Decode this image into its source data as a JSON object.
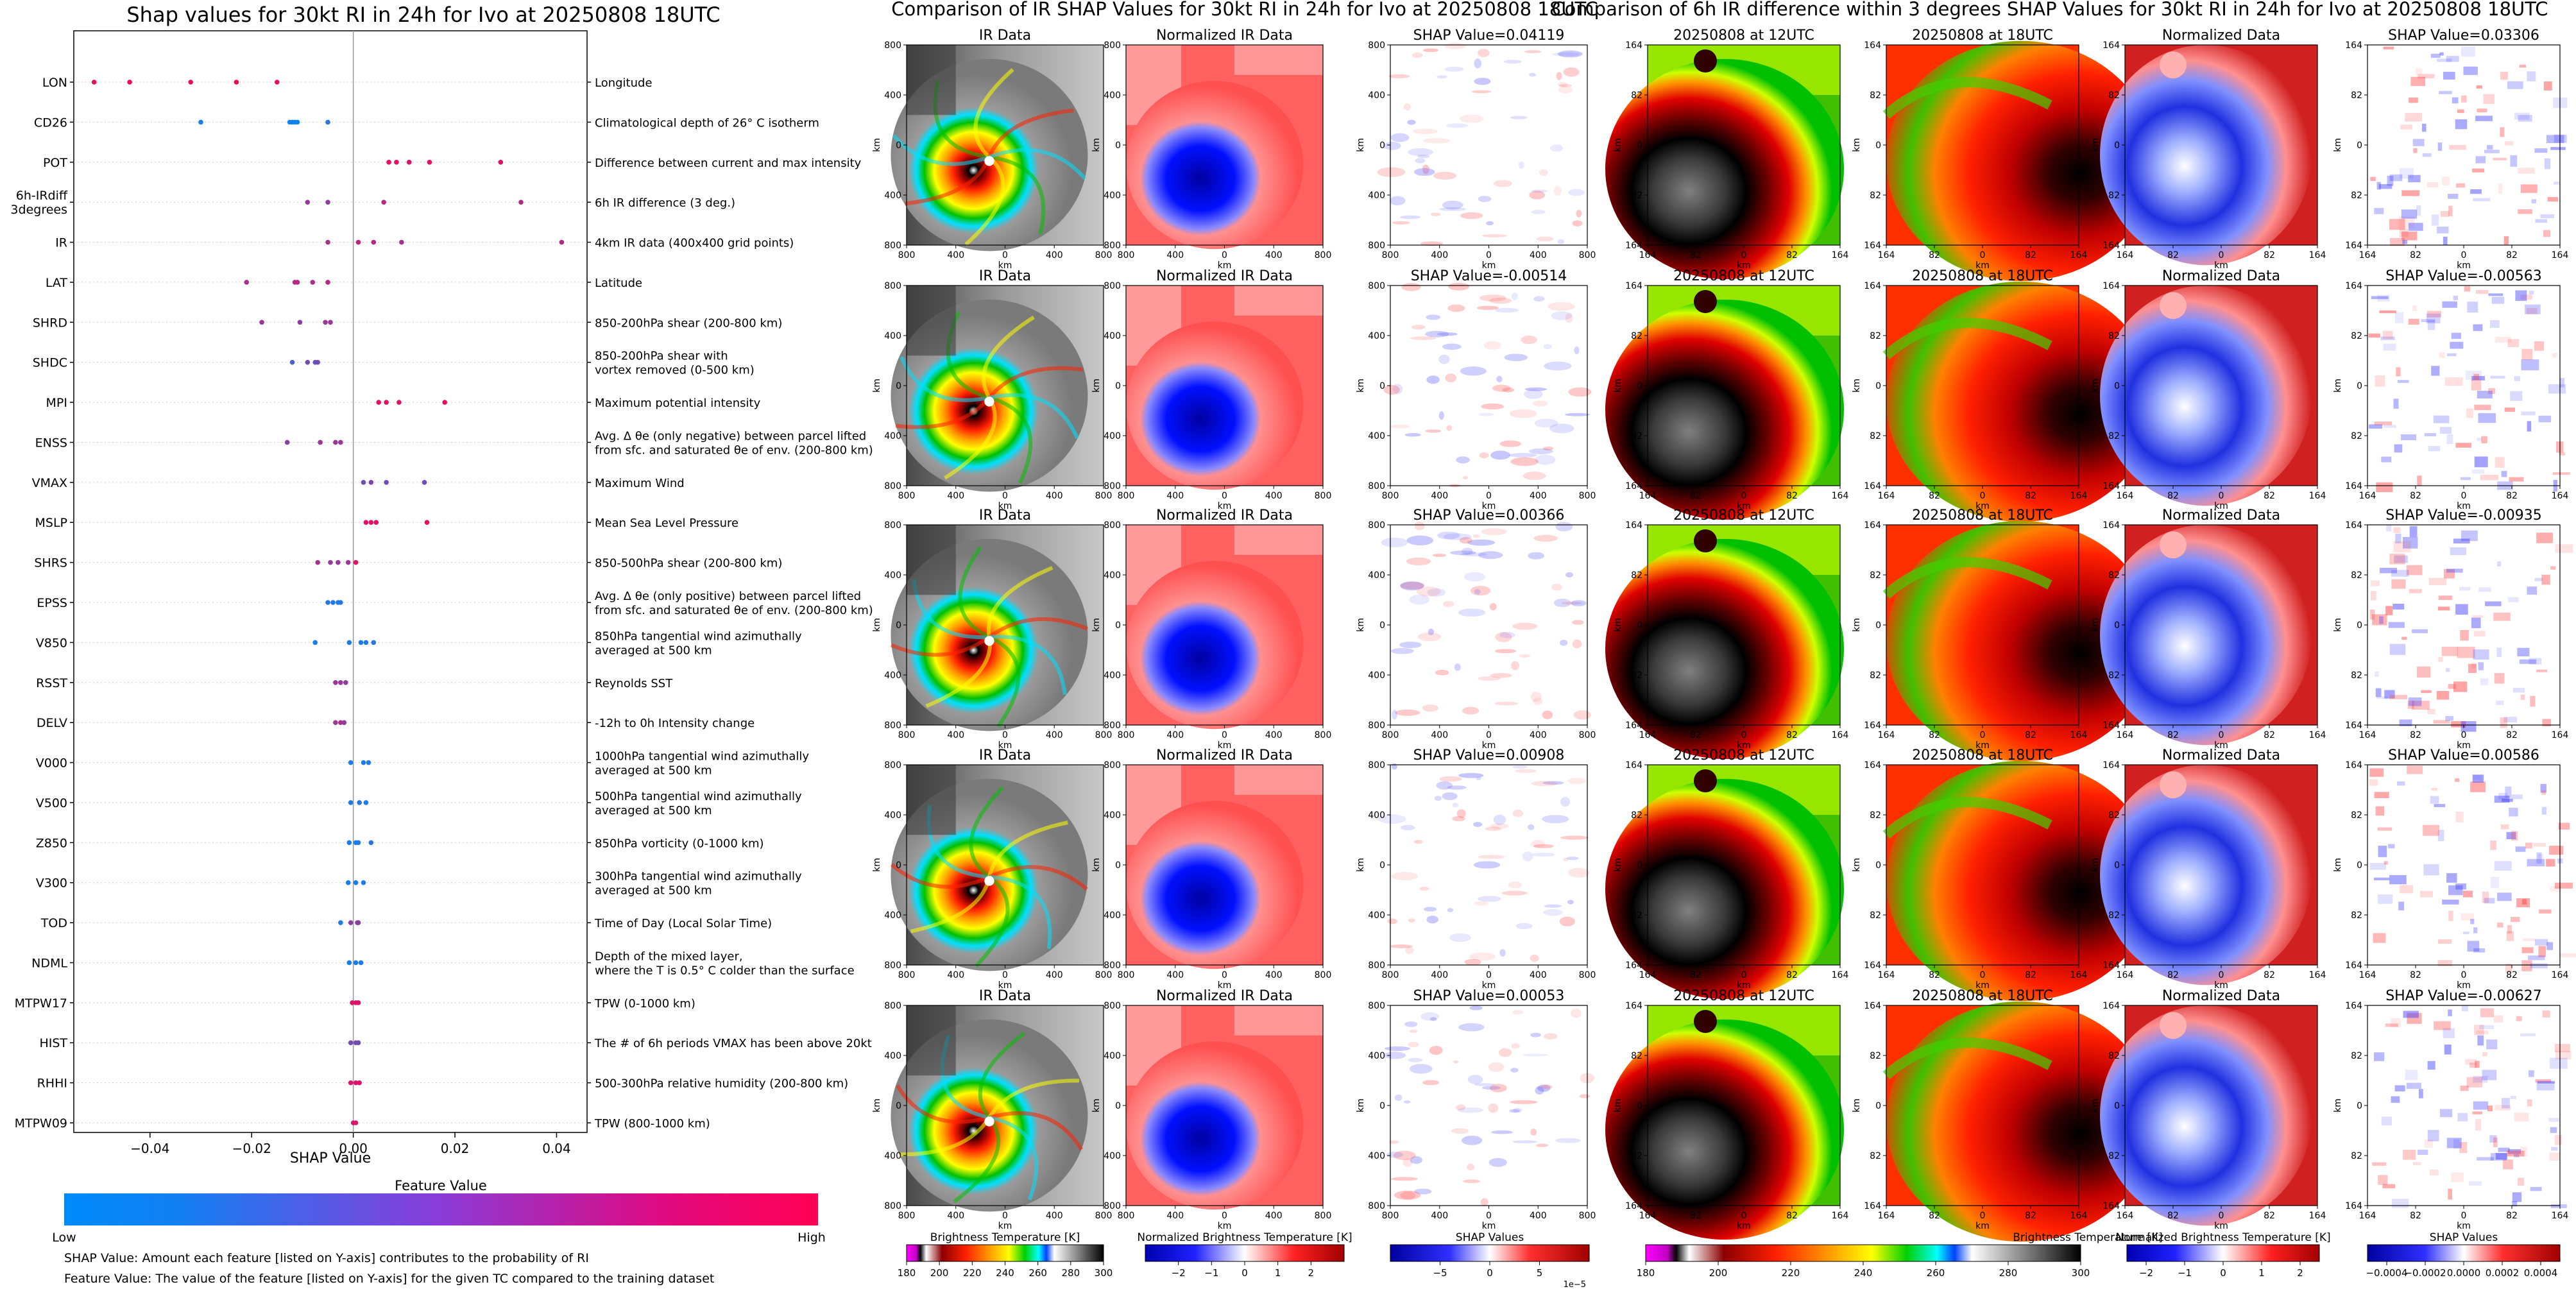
{
  "chart_data": [
    {
      "type": "scatter",
      "title": "Shap values for 30kt RI in 24h for Ivo at 20250808 18UTC",
      "xlabel": "SHAP Value",
      "xlim": [
        -0.055,
        0.046
      ],
      "xticks": [
        -0.04,
        -0.02,
        0.0,
        0.02,
        0.04
      ],
      "xtick_labels": [
        "−0.04",
        "−0.02",
        "0.00",
        "0.02",
        "0.04"
      ],
      "features": [
        {
          "name": "LON",
          "desc": [
            "Longitude"
          ],
          "points": [
            [
              -0.051,
              0.9
            ],
            [
              -0.044,
              0.95
            ],
            [
              -0.032,
              0.9
            ],
            [
              -0.023,
              0.95
            ],
            [
              -0.015,
              0.9
            ]
          ]
        },
        {
          "name": "CD26",
          "desc": [
            "Climatological depth of 26° C isotherm"
          ],
          "points": [
            [
              -0.03,
              0.1
            ],
            [
              -0.0125,
              0.05
            ],
            [
              -0.012,
              0.1
            ],
            [
              -0.0115,
              0.05
            ],
            [
              -0.011,
              0.05
            ],
            [
              -0.005,
              0.15
            ]
          ]
        },
        {
          "name": "POT",
          "desc": [
            "Difference between current and max intensity"
          ],
          "points": [
            [
              0.007,
              0.9
            ],
            [
              0.0085,
              0.9
            ],
            [
              0.011,
              0.85
            ],
            [
              0.015,
              0.9
            ],
            [
              0.029,
              0.85
            ]
          ]
        },
        {
          "name": "6h-IRdiff\n3degrees",
          "desc": [
            "6h IR difference (3 deg.)"
          ],
          "points": [
            [
              -0.009,
              0.6
            ],
            [
              -0.005,
              0.55
            ],
            [
              0.006,
              0.7
            ],
            [
              0.033,
              0.7
            ]
          ]
        },
        {
          "name": "IR",
          "desc": [
            "4km IR data (400x400 grid points)"
          ],
          "points": [
            [
              -0.005,
              0.65
            ],
            [
              0.001,
              0.75
            ],
            [
              0.004,
              0.7
            ],
            [
              0.0095,
              0.65
            ],
            [
              0.041,
              0.7
            ]
          ]
        },
        {
          "name": "LAT",
          "desc": [
            "Latitude"
          ],
          "points": [
            [
              -0.021,
              0.65
            ],
            [
              -0.0115,
              0.7
            ],
            [
              -0.011,
              0.7
            ],
            [
              -0.008,
              0.65
            ],
            [
              -0.005,
              0.7
            ]
          ]
        },
        {
          "name": "SHRD",
          "desc": [
            "850-200hPa shear (200-800 km)"
          ],
          "points": [
            [
              -0.018,
              0.6
            ],
            [
              -0.0105,
              0.55
            ],
            [
              -0.0055,
              0.6
            ],
            [
              -0.0045,
              0.6
            ]
          ]
        },
        {
          "name": "SHDC",
          "desc": [
            "850-200hPa shear with",
            "vortex removed (0-500 km)"
          ],
          "points": [
            [
              -0.012,
              0.3
            ],
            [
              -0.009,
              0.45
            ],
            [
              -0.0075,
              0.4
            ],
            [
              -0.007,
              0.45
            ]
          ]
        },
        {
          "name": "MPI",
          "desc": [
            "Maximum potential intensity"
          ],
          "points": [
            [
              0.005,
              0.9
            ],
            [
              0.0065,
              0.9
            ],
            [
              0.009,
              0.85
            ],
            [
              0.018,
              0.9
            ]
          ]
        },
        {
          "name": "ENSS",
          "desc": [
            "Avg. Δ θe (only negative) between parcel lifted",
            "from sfc. and saturated θe of env. (200-800 km)"
          ],
          "points": [
            [
              -0.013,
              0.55
            ],
            [
              -0.0065,
              0.6
            ],
            [
              -0.0035,
              0.6
            ],
            [
              -0.0025,
              0.6
            ]
          ]
        },
        {
          "name": "VMAX",
          "desc": [
            "Maximum Wind"
          ],
          "points": [
            [
              0.002,
              0.45
            ],
            [
              0.0035,
              0.5
            ],
            [
              0.0065,
              0.45
            ],
            [
              0.014,
              0.45
            ]
          ]
        },
        {
          "name": "MSLP",
          "desc": [
            "Mean Sea Level Pressure"
          ],
          "points": [
            [
              0.0025,
              0.9
            ],
            [
              0.0035,
              0.9
            ],
            [
              0.0045,
              0.9
            ],
            [
              0.0145,
              0.9
            ]
          ]
        },
        {
          "name": "SHRS",
          "desc": [
            "850-500hPa shear (200-800 km)"
          ],
          "points": [
            [
              -0.007,
              0.65
            ],
            [
              -0.0045,
              0.6
            ],
            [
              -0.003,
              0.6
            ],
            [
              -0.001,
              0.6
            ],
            [
              0.0005,
              0.9
            ]
          ]
        },
        {
          "name": "EPSS",
          "desc": [
            "Avg. Δ θe (only positive) between parcel lifted",
            "from sfc. and saturated θe of env. (200-800 km)"
          ],
          "points": [
            [
              -0.005,
              0.15
            ],
            [
              -0.004,
              0.15
            ],
            [
              -0.003,
              0.1
            ],
            [
              -0.0025,
              0.15
            ]
          ]
        },
        {
          "name": "V850",
          "desc": [
            "850hPa tangential wind azimuthally",
            "averaged at 500 km"
          ],
          "points": [
            [
              -0.0075,
              0.1
            ],
            [
              -0.0008,
              0.1
            ],
            [
              0.0015,
              0.1
            ],
            [
              0.0025,
              0.1
            ],
            [
              0.004,
              0.15
            ]
          ]
        },
        {
          "name": "RSST",
          "desc": [
            "Reynolds SST"
          ],
          "points": [
            [
              -0.0035,
              0.6
            ],
            [
              -0.0025,
              0.6
            ],
            [
              -0.0015,
              0.55
            ]
          ]
        },
        {
          "name": "DELV",
          "desc": [
            "-12h to 0h Intensity change"
          ],
          "points": [
            [
              -0.0035,
              0.6
            ],
            [
              -0.0025,
              0.65
            ],
            [
              -0.0018,
              0.55
            ]
          ]
        },
        {
          "name": "V000",
          "desc": [
            "1000hPa tangential wind azimuthally",
            "averaged at 500 km"
          ],
          "points": [
            [
              -0.0005,
              0.1
            ],
            [
              0.002,
              0.1
            ],
            [
              0.003,
              0.1
            ]
          ]
        },
        {
          "name": "V500",
          "desc": [
            "500hPa tangential wind azimuthally",
            "averaged at 500 km"
          ],
          "points": [
            [
              -0.0005,
              0.1
            ],
            [
              0.0012,
              0.15
            ],
            [
              0.0025,
              0.1
            ]
          ]
        },
        {
          "name": "Z850",
          "desc": [
            "850hPa vorticity (0-1000 km)"
          ],
          "points": [
            [
              -0.0008,
              0.1
            ],
            [
              0.0005,
              0.1
            ],
            [
              0.001,
              0.1
            ],
            [
              0.0035,
              0.15
            ]
          ]
        },
        {
          "name": "V300",
          "desc": [
            "300hPa tangential wind azimuthally",
            "averaged at 500 km"
          ],
          "points": [
            [
              -0.001,
              0.1
            ],
            [
              0.0005,
              0.1
            ],
            [
              0.002,
              0.1
            ]
          ]
        },
        {
          "name": "TOD",
          "desc": [
            "Time of Day (Local Solar Time)"
          ],
          "points": [
            [
              -0.0025,
              0.1
            ],
            [
              -0.0005,
              0.55
            ],
            [
              0.0008,
              0.5
            ],
            [
              0.001,
              0.55
            ]
          ]
        },
        {
          "name": "NDML",
          "desc": [
            "Depth of the mixed layer,",
            "where the T is 0.5° C colder than the surface"
          ],
          "points": [
            [
              -0.0008,
              0.1
            ],
            [
              0.0005,
              0.1
            ],
            [
              0.0015,
              0.1
            ]
          ]
        },
        {
          "name": "MTPW17",
          "desc": [
            "TPW (0-1000 km)"
          ],
          "points": [
            [
              -0.0002,
              0.85
            ],
            [
              0.0005,
              0.85
            ],
            [
              0.001,
              0.85
            ]
          ]
        },
        {
          "name": "HIST",
          "desc": [
            "The # of 6h periods VMAX has been above 20kt"
          ],
          "points": [
            [
              -0.0005,
              0.45
            ],
            [
              0.0005,
              0.45
            ],
            [
              0.001,
              0.45
            ]
          ]
        },
        {
          "name": "RHHI",
          "desc": [
            "500-300hPa relative humidity (200-800 km)"
          ],
          "points": [
            [
              -0.0005,
              0.85
            ],
            [
              0.0005,
              0.85
            ],
            [
              0.0012,
              0.85
            ]
          ]
        },
        {
          "name": "MTPW09",
          "desc": [
            "TPW (800-1000 km)"
          ],
          "points": [
            [
              0.0,
              0.85
            ],
            [
              0.0005,
              0.85
            ]
          ]
        }
      ],
      "colorbar": {
        "label": "Feature Value",
        "low_label": "Low",
        "high_label": "High",
        "low_color": "#008bfb",
        "high_color": "#ff0052"
      },
      "notes": [
        "SHAP Value: Amount each feature [listed on Y-axis] contributes to the probability of RI",
        "Feature Value: The value of the feature [listed on Y-axis] for the given TC compared to the training dataset"
      ]
    },
    {
      "type": "heatmap",
      "title": "Comparison of IR SHAP Values for 30kt RI in 24h for Ivo at 20250808 18UTC",
      "column_titles": [
        "IR Data",
        "Normalized IR Data"
      ],
      "shap_titles": [
        "SHAP Value=0.04119",
        "SHAP Value=-0.00514",
        "SHAP Value=0.00366",
        "SHAP Value=0.00908",
        "SHAP Value=0.00053"
      ],
      "shap_values": [
        0.04119,
        -0.00514,
        0.00366,
        0.00908,
        0.00053
      ],
      "axis_label": "km",
      "x_ticks": [
        "800",
        "400",
        "0",
        "400",
        "800"
      ],
      "y_ticks": [
        "800",
        "400",
        "0",
        "400",
        "800"
      ],
      "colorbars": [
        {
          "label": "Brightness Temperature [K]",
          "ticks": [
            "180",
            "200",
            "220",
            "240",
            "260",
            "280",
            "300"
          ]
        },
        {
          "label": "Normalized Brightness Temperature [K]",
          "ticks": [
            "−2",
            "−1",
            "0",
            "1",
            "2"
          ]
        },
        {
          "label": "SHAP Values",
          "ticks": [
            "−5",
            "0",
            "5"
          ],
          "scale_label": "1e−5"
        }
      ]
    },
    {
      "type": "heatmap",
      "title": "Comparison of 6h IR difference within 3 degrees SHAP Values for 30kt RI in 24h for Ivo at 20250808 18UTC",
      "column_titles": [
        "20250808 at 12UTC",
        "20250808 at 18UTC",
        "Normalized Data"
      ],
      "shap_titles": [
        "SHAP Value=0.03306",
        "SHAP Value=-0.00563",
        "SHAP Value=-0.00935",
        "SHAP Value=0.00586",
        "SHAP Value=-0.00627"
      ],
      "shap_values": [
        0.03306,
        -0.00563,
        -0.00935,
        0.00586,
        -0.00627
      ],
      "axis_label": "km",
      "x_ticks": [
        "164",
        "82",
        "0",
        "82",
        "164"
      ],
      "y_ticks": [
        "164",
        "82",
        "0",
        "82",
        "164"
      ],
      "colorbars": [
        {
          "label": "Brightness Temperature [K]",
          "ticks": [
            "180",
            "200",
            "220",
            "240",
            "260",
            "280",
            "300"
          ]
        },
        {
          "label": "Normalized Brightness Temperature [K]",
          "ticks": [
            "−2",
            "−1",
            "0",
            "1",
            "2"
          ]
        },
        {
          "label": "SHAP Values",
          "ticks": [
            "−0.0004",
            "−0.0002",
            "0.0000",
            "0.0002",
            "0.0004"
          ]
        }
      ]
    }
  ]
}
